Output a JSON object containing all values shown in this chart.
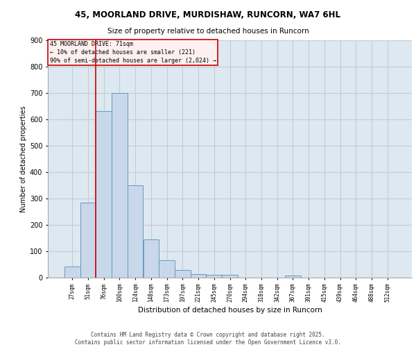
{
  "title1": "45, MOORLAND DRIVE, MURDISHAW, RUNCORN, WA7 6HL",
  "title2": "Size of property relative to detached houses in Runcorn",
  "xlabel": "Distribution of detached houses by size in Runcorn",
  "ylabel": "Number of detached properties",
  "bar_color": "#c8d8ea",
  "bar_edge_color": "#6699bb",
  "bg_color": "#dde8f0",
  "categories": [
    "27sqm",
    "51sqm",
    "76sqm",
    "100sqm",
    "124sqm",
    "148sqm",
    "173sqm",
    "197sqm",
    "221sqm",
    "245sqm",
    "270sqm",
    "294sqm",
    "318sqm",
    "342sqm",
    "367sqm",
    "391sqm",
    "415sqm",
    "439sqm",
    "464sqm",
    "488sqm",
    "512sqm"
  ],
  "values": [
    43,
    285,
    630,
    700,
    350,
    145,
    65,
    28,
    14,
    11,
    10,
    0,
    0,
    0,
    8,
    0,
    0,
    0,
    0,
    0,
    0
  ],
  "red_line_x": 1.5,
  "annotation_line1": "45 MOORLAND DRIVE: 71sqm",
  "annotation_line2": "← 10% of detached houses are smaller (221)",
  "annotation_line3": "90% of semi-detached houses are larger (2,024) →",
  "annotation_box_color": "#fff0f0",
  "annotation_border_color": "#cc0000",
  "ylim": [
    0,
    900
  ],
  "yticks": [
    0,
    100,
    200,
    300,
    400,
    500,
    600,
    700,
    800,
    900
  ],
  "footer": "Contains HM Land Registry data © Crown copyright and database right 2025.\nContains public sector information licensed under the Open Government Licence v3.0.",
  "grid_color": "#c0ccd8"
}
